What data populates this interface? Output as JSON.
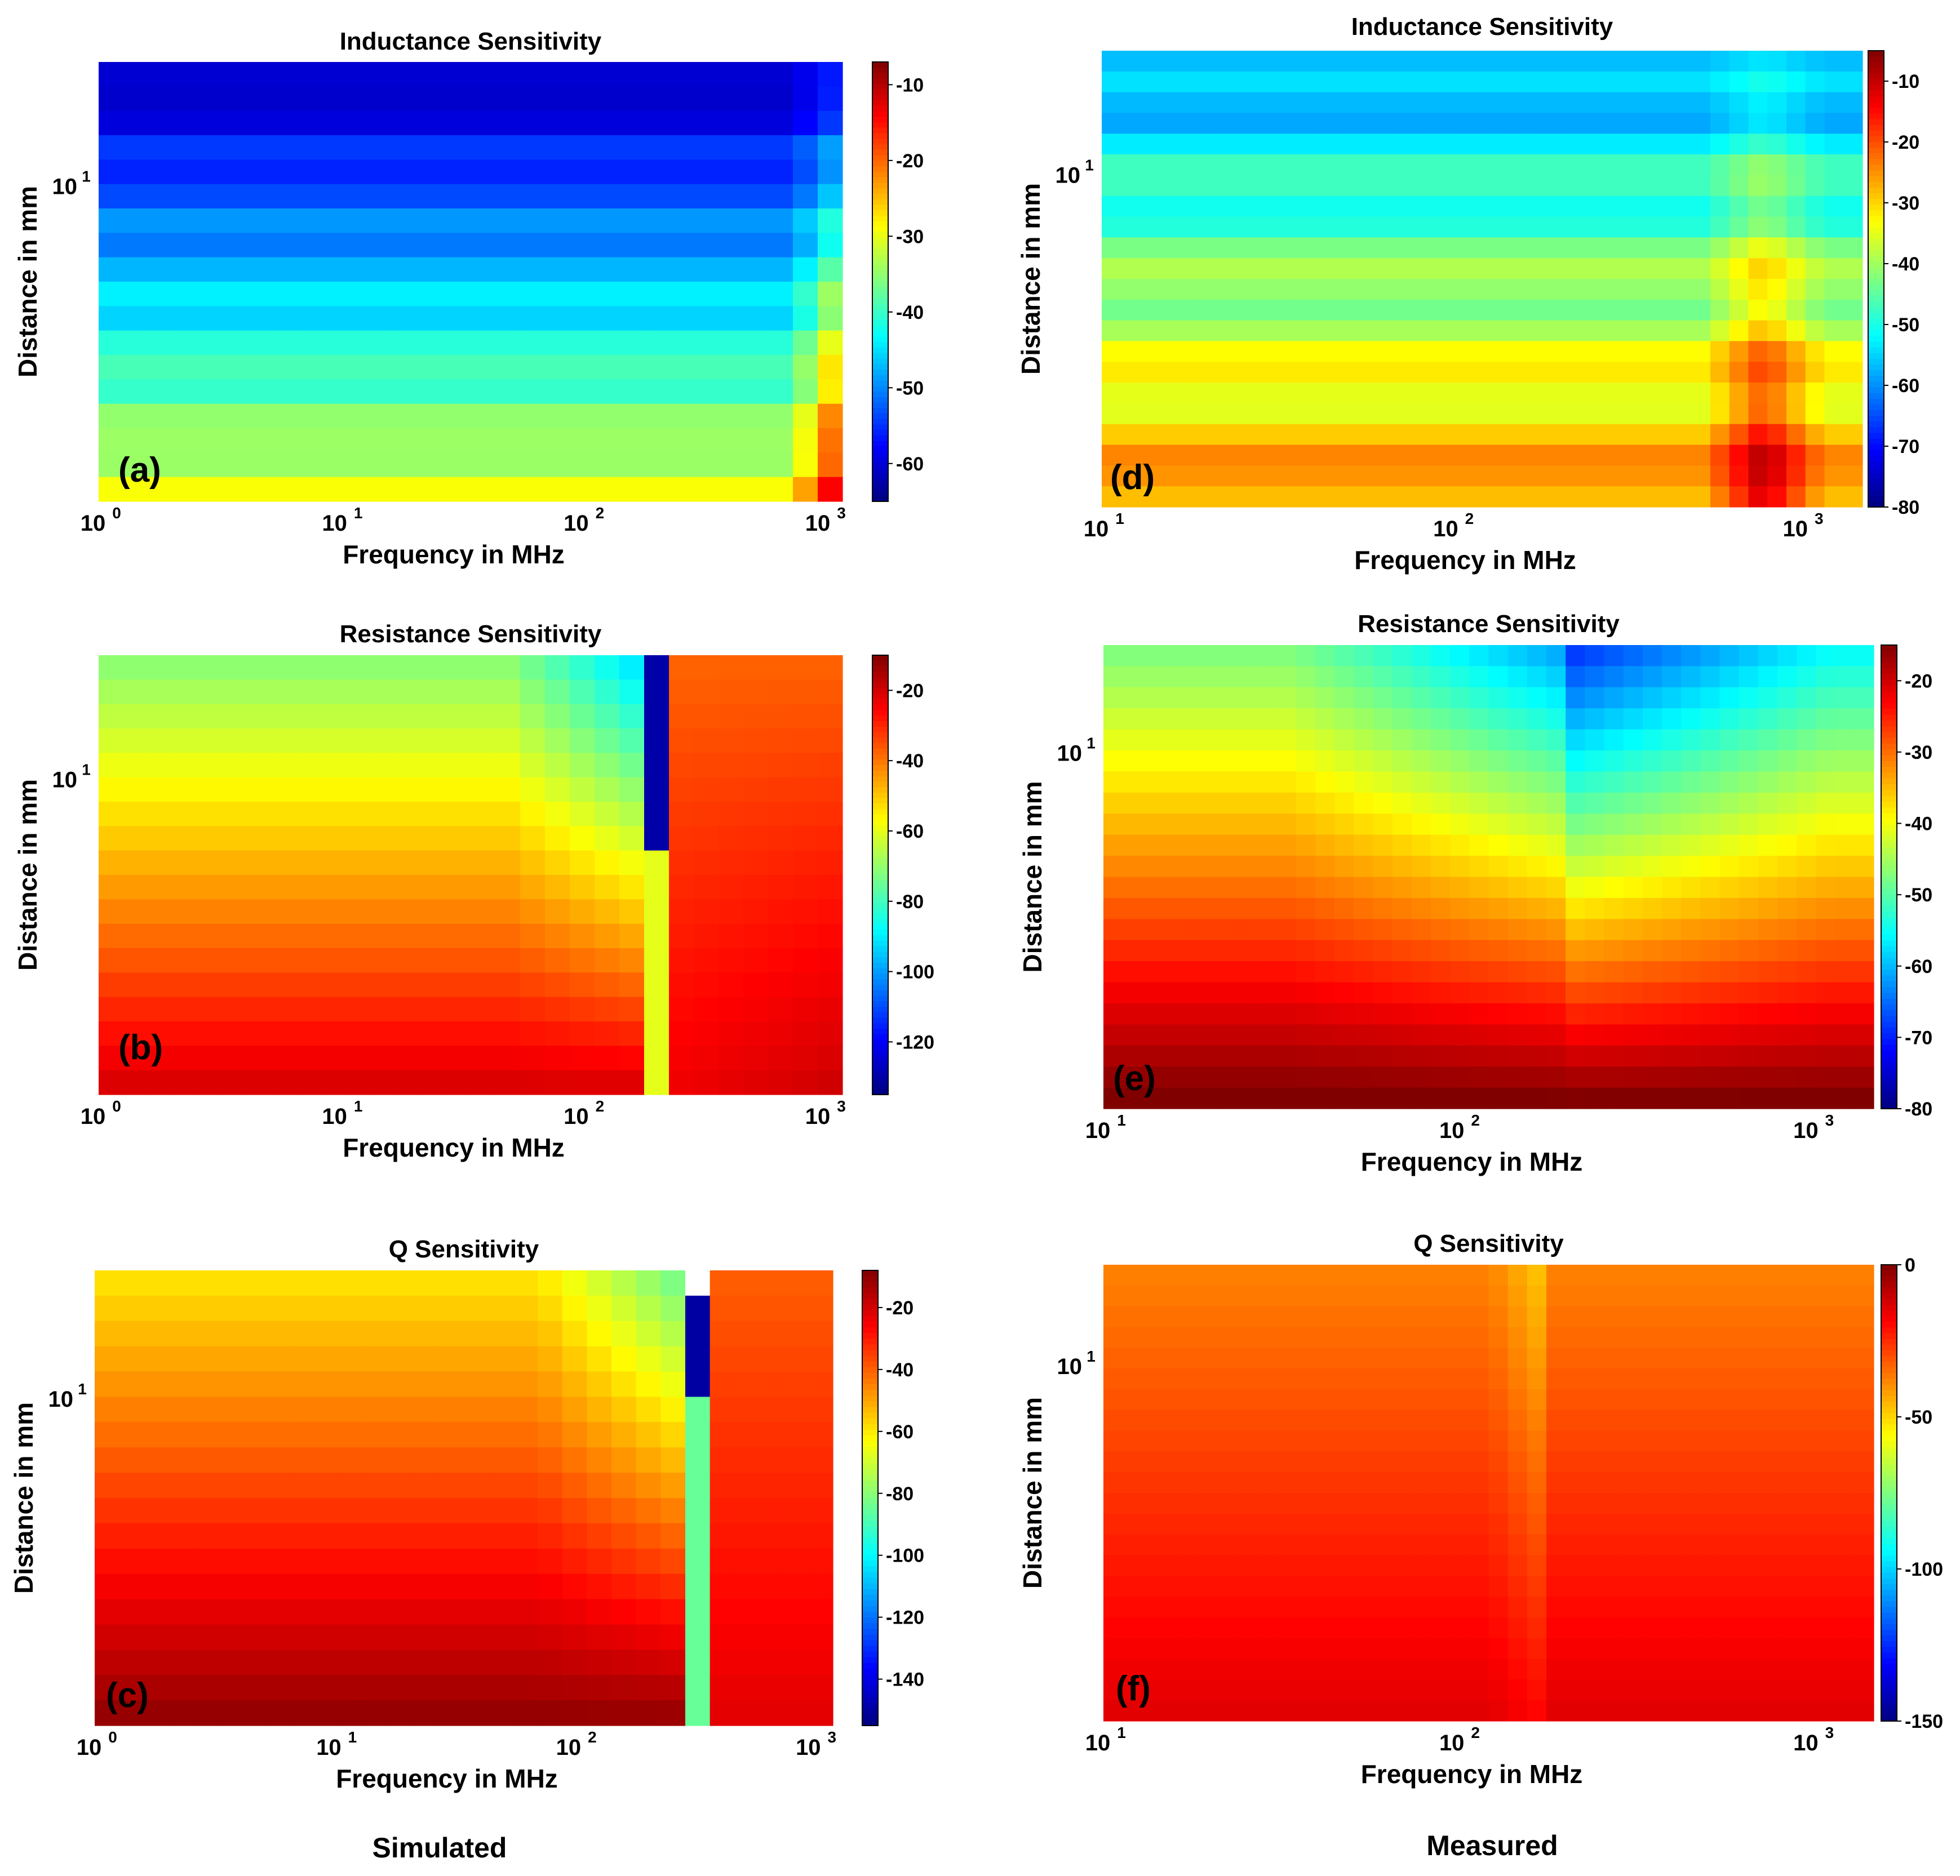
{
  "columns": {
    "left": "Simulated",
    "right": "Measured"
  },
  "chart_data": [
    {
      "id": "a",
      "type": "heatmap",
      "title": "Inductance Sensitivity",
      "tag": "(a)",
      "xlabel": "Frequency in MHz",
      "ylabel": "Distance in mm",
      "x_scale": "log",
      "xlim": [
        1,
        1200
      ],
      "x_ticks": [
        {
          "base": "10",
          "exp": "0"
        },
        {
          "base": "10",
          "exp": "1"
        },
        {
          "base": "10",
          "exp": "2"
        },
        {
          "base": "10",
          "exp": "3"
        }
      ],
      "y_ticks": [
        {
          "base": "10",
          "exp": "1"
        }
      ],
      "colorbar": {
        "ticks": [
          "-10",
          "-20",
          "-30",
          "-40",
          "-50",
          "-60"
        ],
        "range": [
          -65,
          -7
        ]
      },
      "model": "inductance_sim",
      "rows": 18,
      "cols": 30
    },
    {
      "id": "b",
      "type": "heatmap",
      "title": "Resistance Sensitivity",
      "tag": "(b)",
      "xlabel": "Frequency in MHz",
      "ylabel": "Distance in mm",
      "x_scale": "log",
      "xlim": [
        1,
        1200
      ],
      "x_ticks": [
        {
          "base": "10",
          "exp": "0"
        },
        {
          "base": "10",
          "exp": "1"
        },
        {
          "base": "10",
          "exp": "2"
        },
        {
          "base": "10",
          "exp": "3"
        }
      ],
      "y_ticks": [
        {
          "base": "10",
          "exp": "1"
        }
      ],
      "colorbar": {
        "ticks": [
          "-20",
          "-40",
          "-60",
          "-80",
          "-100",
          "-120"
        ],
        "range": [
          -135,
          -10
        ]
      },
      "model": "resistance_sim",
      "rows": 18,
      "cols": 30
    },
    {
      "id": "c",
      "type": "heatmap",
      "title": "Q Sensitivity",
      "tag": "(c)",
      "xlabel": "Frequency in MHz",
      "ylabel": "Distance in mm",
      "x_scale": "log",
      "xlim": [
        1,
        1200
      ],
      "x_ticks": [
        {
          "base": "10",
          "exp": "0"
        },
        {
          "base": "10",
          "exp": "1"
        },
        {
          "base": "10",
          "exp": "2"
        },
        {
          "base": "10",
          "exp": "3"
        }
      ],
      "y_ticks": [
        {
          "base": "10",
          "exp": "1"
        }
      ],
      "colorbar": {
        "ticks": [
          "-20",
          "-40",
          "-60",
          "-80",
          "-100",
          "-120",
          "-140"
        ],
        "range": [
          -155,
          -8
        ]
      },
      "model": "q_sim",
      "rows": 18,
      "cols": 30
    },
    {
      "id": "d",
      "type": "heatmap",
      "title": "Inductance Sensitivity",
      "tag": "(d)",
      "xlabel": "Frequency in MHz",
      "ylabel": "Distance in mm",
      "x_scale": "log",
      "xlim": [
        10,
        1500
      ],
      "x_ticks": [
        {
          "base": "10",
          "exp": "1"
        },
        {
          "base": "10",
          "exp": "2"
        },
        {
          "base": "10",
          "exp": "3"
        }
      ],
      "y_ticks": [
        {
          "base": "10",
          "exp": "1"
        }
      ],
      "colorbar": {
        "ticks": [
          "-10",
          "-20",
          "-30",
          "-40",
          "-50",
          "-60",
          "-70",
          "-80"
        ],
        "range": [
          -80,
          -5
        ]
      },
      "model": "inductance_meas",
      "rows": 22,
      "cols": 40
    },
    {
      "id": "e",
      "type": "heatmap",
      "title": "Resistance Sensitivity",
      "tag": "(e)",
      "xlabel": "Frequency in MHz",
      "ylabel": "Distance in mm",
      "x_scale": "log",
      "xlim": [
        10,
        1500
      ],
      "x_ticks": [
        {
          "base": "10",
          "exp": "1"
        },
        {
          "base": "10",
          "exp": "2"
        },
        {
          "base": "10",
          "exp": "3"
        }
      ],
      "y_ticks": [
        {
          "base": "10",
          "exp": "1"
        }
      ],
      "colorbar": {
        "ticks": [
          "-20",
          "-30",
          "-40",
          "-50",
          "-60",
          "-70",
          "-80"
        ],
        "range": [
          -80,
          -15
        ]
      },
      "model": "resistance_meas",
      "rows": 22,
      "cols": 40
    },
    {
      "id": "f",
      "type": "heatmap",
      "title": "Q Sensitivity",
      "tag": "(f)",
      "xlabel": "Frequency in MHz",
      "ylabel": "Distance in mm",
      "x_scale": "log",
      "xlim": [
        10,
        1500
      ],
      "x_ticks": [
        {
          "base": "10",
          "exp": "1"
        },
        {
          "base": "10",
          "exp": "2"
        },
        {
          "base": "10",
          "exp": "3"
        }
      ],
      "y_ticks": [
        {
          "base": "10",
          "exp": "1"
        }
      ],
      "colorbar": {
        "ticks": [
          "0",
          "-50",
          "-100",
          "-150"
        ],
        "range": [
          -150,
          0
        ]
      },
      "model": "q_meas",
      "rows": 22,
      "cols": 40
    }
  ]
}
